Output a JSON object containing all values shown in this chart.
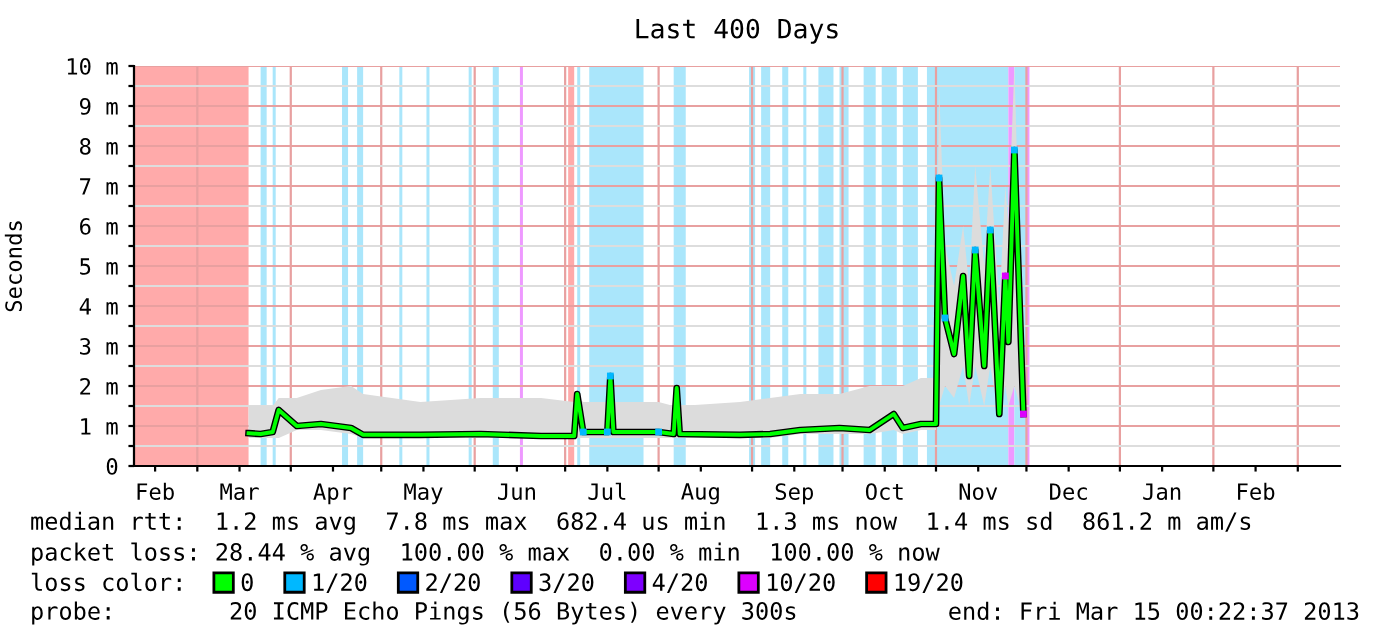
{
  "chart_data": {
    "type": "line",
    "title": "Last 400 Days",
    "ylabel": "Seconds",
    "x": [
      "2012-03-18",
      "2012-03-22",
      "2012-03-26",
      "2012-03-28",
      "2012-04-03",
      "2012-04-11",
      "2012-04-21",
      "2012-04-25",
      "2012-05-14",
      "2012-06-03",
      "2012-06-23",
      "2012-07-04",
      "2012-07-05",
      "2012-07-07",
      "2012-07-15",
      "2012-07-16",
      "2012-07-17",
      "2012-08-01",
      "2012-08-06",
      "2012-08-07",
      "2012-08-08",
      "2012-08-28",
      "2012-09-07",
      "2012-09-17",
      "2012-09-30",
      "2012-10-10",
      "2012-10-18",
      "2012-10-21",
      "2012-10-27",
      "2012-11-01",
      "2012-11-02",
      "2012-11-04",
      "2012-11-07",
      "2012-11-10",
      "2012-11-12",
      "2012-11-14",
      "2012-11-17",
      "2012-11-19",
      "2012-11-22",
      "2012-11-24",
      "2012-11-25",
      "2012-11-27",
      "2012-11-30"
    ],
    "series": [
      {
        "name": "0",
        "color": "#00ff00",
        "values": [
          0.82,
          0.8,
          0.85,
          1.4,
          1.0,
          1.05,
          0.95,
          0.78,
          0.78,
          0.8,
          0.75,
          0.75,
          1.8,
          0.85,
          0.85,
          2.25,
          0.85,
          0.85,
          0.8,
          1.95,
          0.8,
          0.78,
          0.8,
          0.9,
          0.95,
          0.9,
          1.3,
          0.95,
          1.05,
          1.05,
          7.2,
          3.7,
          2.8,
          4.75,
          2.25,
          5.4,
          2.5,
          5.9,
          1.3,
          4.75,
          3.1,
          7.9,
          1.3
        ],
        "lower": [
          0.7,
          0.7,
          0.7,
          0.7,
          0.9,
          0.9,
          0.8,
          0.7,
          0.7,
          0.7,
          0.7,
          0.7,
          0.7,
          0.7,
          0.7,
          0.7,
          0.7,
          0.7,
          0.7,
          0.7,
          0.7,
          0.7,
          0.7,
          0.8,
          0.8,
          0.8,
          0.9,
          0.8,
          0.9,
          0.9,
          1.5,
          2.0,
          1.7,
          2.5,
          1.5,
          2.5,
          1.5,
          2.5,
          1.2,
          2.0,
          1.5,
          2.0,
          1.2
        ],
        "upper": [
          1.5,
          1.5,
          1.5,
          1.7,
          1.7,
          1.9,
          2.0,
          1.8,
          1.6,
          1.7,
          1.7,
          1.6,
          1.7,
          1.6,
          1.6,
          1.6,
          1.6,
          1.6,
          1.5,
          1.6,
          1.5,
          1.6,
          1.7,
          1.8,
          1.8,
          2.0,
          2.0,
          2.0,
          2.2,
          2.2,
          9.5,
          5.5,
          4.5,
          6.0,
          4.5,
          7.5,
          5.0,
          7.5,
          4.0,
          7.0,
          6.0,
          10.0,
          2.0
        ]
      },
      {
        "name": "1/20",
        "type": "scatter",
        "marker": "square",
        "color": "#00b8ff",
        "x": [
          "2012-07-07",
          "2012-07-15",
          "2012-07-16",
          "2012-08-01",
          "2012-11-02",
          "2012-11-04",
          "2012-11-14",
          "2012-11-19",
          "2012-11-27"
        ],
        "values": [
          0.85,
          0.85,
          2.25,
          0.85,
          7.2,
          3.7,
          5.4,
          5.9,
          7.9
        ]
      },
      {
        "name": "2/20",
        "type": "scatter",
        "color": "#0059ff",
        "values": [
          null,
          null,
          null,
          null,
          null,
          null,
          null,
          null,
          null,
          null,
          null,
          null,
          null,
          null,
          null,
          null,
          null,
          null,
          null,
          null,
          null,
          null,
          null,
          null,
          null,
          null,
          null,
          null,
          null,
          null,
          null,
          null,
          null,
          null,
          null,
          null,
          null,
          null,
          null,
          null,
          null,
          null,
          null
        ]
      },
      {
        "name": "3/20",
        "type": "scatter",
        "color": "#5e00ff",
        "values": [
          null,
          null,
          null,
          null,
          null,
          null,
          null,
          null,
          null,
          null,
          null,
          null,
          null,
          null,
          null,
          null,
          null,
          null,
          null,
          null,
          null,
          null,
          null,
          null,
          null,
          null,
          null,
          null,
          null,
          null,
          null,
          null,
          null,
          null,
          null,
          null,
          null,
          null,
          null,
          null,
          null,
          null,
          null
        ]
      },
      {
        "name": "4/20",
        "type": "scatter",
        "color": "#7e00ff",
        "values": [
          null,
          null,
          null,
          null,
          null,
          null,
          null,
          null,
          null,
          null,
          null,
          null,
          null,
          null,
          null,
          null,
          null,
          null,
          null,
          null,
          null,
          null,
          null,
          null,
          null,
          null,
          null,
          null,
          null,
          null,
          null,
          null,
          null,
          null,
          null,
          null,
          null,
          null,
          null,
          null,
          null,
          null,
          null
        ]
      },
      {
        "name": "10/20",
        "type": "scatter",
        "marker": "square",
        "color": "#dd00ff",
        "x": [
          "2012-11-24",
          "2012-11-30"
        ],
        "values": [
          4.75,
          1.3
        ]
      },
      {
        "name": "19/20",
        "type": "scatter",
        "color": "#ff0000",
        "values": [
          null,
          null,
          null,
          null,
          null,
          null,
          null,
          null,
          null,
          null,
          null,
          null,
          null,
          null,
          null,
          null,
          null,
          null,
          null,
          null,
          null,
          null,
          null,
          null,
          null,
          null,
          null,
          null,
          null,
          null,
          null,
          null,
          null,
          null,
          null,
          null,
          null,
          null,
          null,
          null,
          null,
          null,
          null
        ]
      }
    ],
    "legend_title": "loss color:",
    "legend": "bottom",
    "xlim": [
      "2012-02-09",
      "2013-03-15"
    ],
    "xticks": [
      {
        "value": "2012-03-01",
        "label": null
      },
      {
        "value": "2012-04-01",
        "label": null
      },
      {
        "value": "2012-05-01",
        "label": null
      },
      {
        "value": "2012-06-01",
        "label": null
      },
      {
        "value": "2012-07-01",
        "label": null
      },
      {
        "value": "2012-08-01",
        "label": null
      },
      {
        "value": "2012-09-01",
        "label": null
      },
      {
        "value": "2012-10-01",
        "label": null
      },
      {
        "value": "2012-11-01",
        "label": null
      },
      {
        "value": "2012-12-01",
        "label": null
      },
      {
        "value": "2013-01-01",
        "label": null
      },
      {
        "value": "2013-02-01",
        "label": null
      },
      {
        "value": "2013-03-01",
        "label": null
      },
      {
        "value": "2012-02-16",
        "label": "Feb"
      },
      {
        "value": "2012-03-15",
        "label": "Mar"
      },
      {
        "value": "2012-04-15",
        "label": "Apr"
      },
      {
        "value": "2012-05-15",
        "label": "May"
      },
      {
        "value": "2012-06-15",
        "label": "Jun"
      },
      {
        "value": "2012-07-15",
        "label": "Jul"
      },
      {
        "value": "2012-08-15",
        "label": "Aug"
      },
      {
        "value": "2012-09-15",
        "label": "Sep"
      },
      {
        "value": "2012-10-15",
        "label": "Oct"
      },
      {
        "value": "2012-11-15",
        "label": "Nov"
      },
      {
        "value": "2012-12-15",
        "label": "Dec"
      },
      {
        "value": "2013-01-15",
        "label": "Jan"
      },
      {
        "value": "2013-02-15",
        "label": "Feb"
      }
    ],
    "ylim": [
      0,
      10
    ],
    "yticks": [
      0,
      {
        "value": 0.5,
        "label": null
      },
      {
        "value": 1,
        "label": "1 m"
      },
      {
        "value": 1.5,
        "label": null
      },
      {
        "value": 2,
        "label": "2 m"
      },
      {
        "value": 2.5,
        "label": null
      },
      {
        "value": 3,
        "label": "3 m"
      },
      {
        "value": 3.5,
        "label": null
      },
      {
        "value": 4,
        "label": "4 m"
      },
      {
        "value": 4.5,
        "label": null
      },
      {
        "value": 5,
        "label": "5 m"
      },
      {
        "value": 5.5,
        "label": null
      },
      {
        "value": 6,
        "label": "6 m"
      },
      {
        "value": 6.5,
        "label": null
      },
      {
        "value": 7,
        "label": "7 m"
      },
      {
        "value": 7.5,
        "label": null
      },
      {
        "value": 8,
        "label": "8 m"
      },
      {
        "value": 8.5,
        "label": null
      },
      {
        "value": 9,
        "label": "9 m"
      },
      {
        "value": 9.5,
        "label": null
      },
      {
        "value": 10,
        "label": "10 m"
      }
    ],
    "grid": true,
    "bands": [
      {
        "axis": "x",
        "from": "2012-02-09",
        "to": "2012-03-18",
        "color": "#ffaaaa"
      },
      {
        "axis": "x",
        "from": "2012-03-22",
        "to": "2012-03-24",
        "color": "#aae6fb"
      },
      {
        "axis": "x",
        "from": "2012-03-26",
        "to": "2012-03-27",
        "color": "#aae6fb"
      },
      {
        "axis": "x",
        "from": "2012-04-18",
        "to": "2012-04-20",
        "color": "#aae6fb"
      },
      {
        "axis": "x",
        "from": "2012-04-23",
        "to": "2012-04-25",
        "color": "#aae6fb"
      },
      {
        "axis": "x",
        "from": "2012-05-07",
        "to": "2012-05-08",
        "color": "#aae6fb"
      },
      {
        "axis": "x",
        "from": "2012-05-16",
        "to": "2012-05-17",
        "color": "#aae6fb"
      },
      {
        "axis": "x",
        "from": "2012-05-30",
        "to": "2012-05-31",
        "color": "#aae6fb"
      },
      {
        "axis": "x",
        "from": "2012-06-07",
        "to": "2012-06-09",
        "color": "#aae6fb"
      },
      {
        "axis": "x",
        "from": "2012-06-16",
        "to": "2012-06-17",
        "color": "#ee99ff"
      },
      {
        "axis": "x",
        "from": "2012-07-02",
        "to": "2012-07-04",
        "color": "#ffaaaa"
      },
      {
        "axis": "x",
        "from": "2012-07-05",
        "to": "2012-07-06",
        "color": "#aae6fb"
      },
      {
        "axis": "x",
        "from": "2012-07-09",
        "to": "2012-07-27",
        "color": "#aae6fb"
      },
      {
        "axis": "x",
        "from": "2012-08-06",
        "to": "2012-08-10",
        "color": "#aae6fb"
      },
      {
        "axis": "x",
        "from": "2012-08-31",
        "to": "2012-09-02",
        "color": "#aae6fb"
      },
      {
        "axis": "x",
        "from": "2012-09-04",
        "to": "2012-09-07",
        "color": "#aae6fb"
      },
      {
        "axis": "x",
        "from": "2012-09-11",
        "to": "2012-09-13",
        "color": "#aae6fb"
      },
      {
        "axis": "x",
        "from": "2012-09-18",
        "to": "2012-09-19",
        "color": "#aae6fb"
      },
      {
        "axis": "x",
        "from": "2012-09-23",
        "to": "2012-09-28",
        "color": "#aae6fb"
      },
      {
        "axis": "x",
        "from": "2012-09-30",
        "to": "2012-10-03",
        "color": "#aae6fb"
      },
      {
        "axis": "x",
        "from": "2012-10-08",
        "to": "2012-10-12",
        "color": "#aae6fb"
      },
      {
        "axis": "x",
        "from": "2012-10-14",
        "to": "2012-10-19",
        "color": "#aae6fb"
      },
      {
        "axis": "x",
        "from": "2012-10-21",
        "to": "2012-10-26",
        "color": "#aae6fb"
      },
      {
        "axis": "x",
        "from": "2012-10-29",
        "to": "2012-11-25",
        "color": "#aae6fb"
      },
      {
        "axis": "x",
        "from": "2012-11-25",
        "to": "2012-11-27",
        "color": "#ee99ff"
      },
      {
        "axis": "x",
        "from": "2012-11-27",
        "to": "2012-12-01",
        "color": "#aae6fb"
      },
      {
        "axis": "x",
        "from": "2012-12-01",
        "to": "2012-12-02",
        "color": "#ee99ff"
      }
    ],
    "annotations": [
      "median rtt:  1.2 ms avg  7.8 ms max  682.4 us min  1.3 ms now  1.4 ms sd  861.2 m am/s",
      "packet loss: 28.44 % avg  100.00 % max  0.00 % min  100.00 % now",
      "probe:        20 ICMP Echo Pings (56 Bytes) every 300s",
      "end: Fri Mar 15 00:22:37 2013"
    ]
  }
}
